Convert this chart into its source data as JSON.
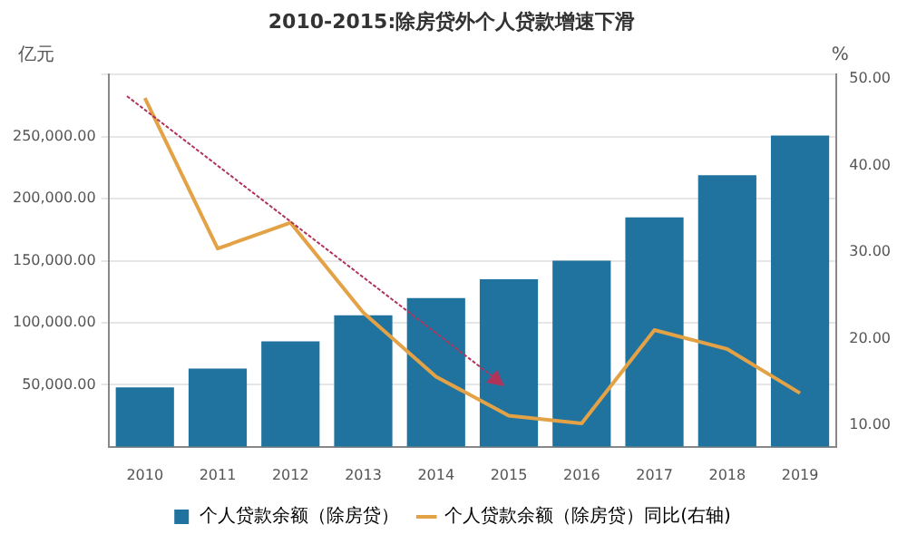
{
  "chart_data": {
    "type": "bar",
    "title": "2010-2015:除房贷外个人贷款增速下滑",
    "ylabel": "亿元",
    "y2label": "%",
    "categories": [
      "2010",
      "2011",
      "2012",
      "2013",
      "2014",
      "2015",
      "2016",
      "2017",
      "2018",
      "2019"
    ],
    "series": [
      {
        "name": "个人贷款余额（除房贷）",
        "color": "#21739f",
        "values": [
          48000,
          63000,
          85000,
          106000,
          120000,
          135000,
          150000,
          185000,
          219000,
          251000
        ]
      },
      {
        "name": "个人贷款余额（除房贷）同比(右轴)",
        "type": "line",
        "axis": "y2",
        "color": "#e3a246",
        "values": [
          47.8,
          30.4,
          33.4,
          23,
          15.6,
          11.1,
          10.2,
          21,
          18.8,
          13.7
        ]
      }
    ],
    "ylim": [
      0,
      300000
    ],
    "yticks": [
      {
        "value": 50000,
        "label": "50,000.00"
      },
      {
        "value": 100000,
        "label": "100,000.00"
      },
      {
        "value": 150000,
        "label": "150,000.00"
      },
      {
        "value": 200000,
        "label": "200,000.00"
      },
      {
        "value": 250000,
        "label": "250,000.00"
      },
      {
        "value": 300000,
        "label": null
      }
    ],
    "y2lim": [
      7.5,
      50.5
    ],
    "y2ticks": [
      {
        "value": 10,
        "label": "10.00"
      },
      {
        "value": 20,
        "label": "20.00"
      },
      {
        "value": 30,
        "label": "30.00"
      },
      {
        "value": 40,
        "label": "40.00"
      },
      {
        "value": 50,
        "label": "50.00"
      }
    ],
    "grid": "y",
    "legend": "bottom",
    "marker": "none",
    "line_style": "solid"
  }
}
